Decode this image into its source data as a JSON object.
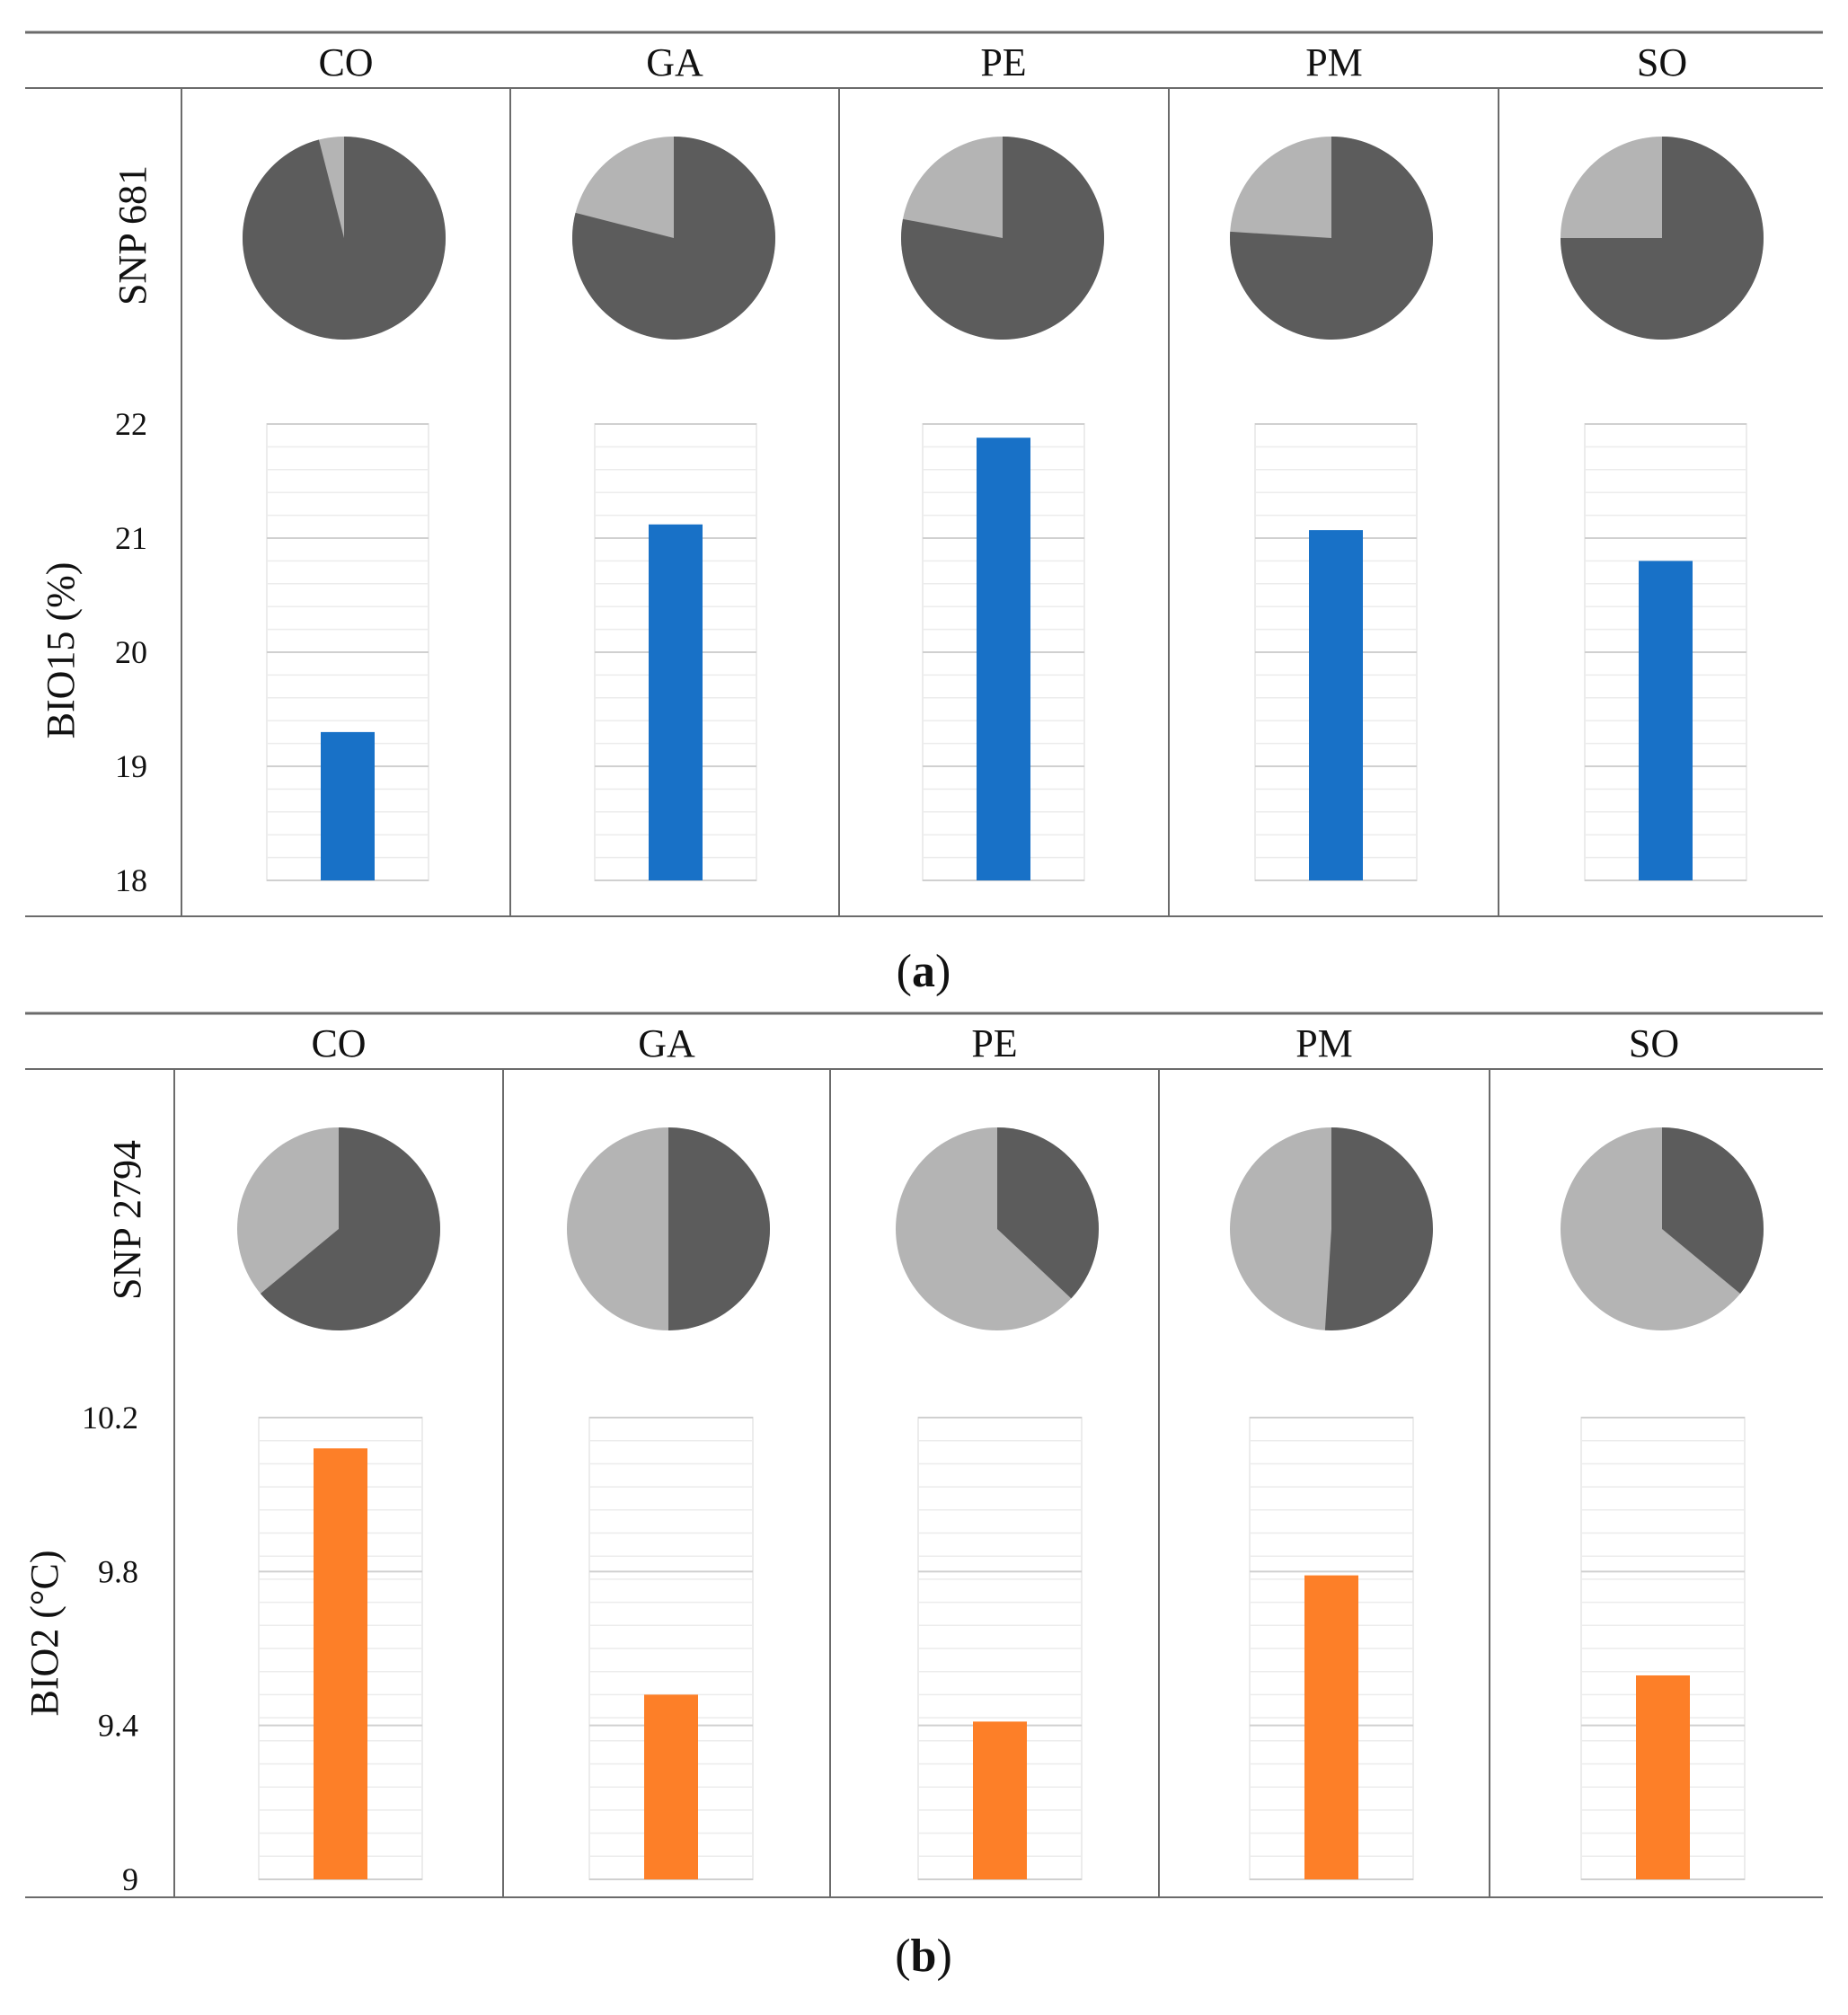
{
  "colors": {
    "pie_dark": "#5c5c5c",
    "pie_light": "#b4b4b4",
    "bar_a": "#1871c7",
    "bar_b": "#fd7f28",
    "grid_major": "#d0d0d0",
    "grid_minor": "#ececec",
    "rule": "#6b6b6b"
  },
  "chart_data": [
    {
      "panel": "a",
      "caption": {
        "open": "(",
        "letter": "a",
        "close": ")"
      },
      "populations": [
        "CO",
        "GA",
        "PE",
        "PM",
        "SO"
      ],
      "pie": {
        "type": "pie",
        "row_label": "SNP 681",
        "series": [
          {
            "name": "dark allele",
            "values": [
              0.96,
              0.79,
              0.78,
              0.76,
              0.75
            ]
          },
          {
            "name": "light allele",
            "values": [
              0.04,
              0.21,
              0.22,
              0.24,
              0.25
            ]
          }
        ]
      },
      "bar": {
        "type": "bar",
        "ylabel": "BIO15 (%)",
        "ylim": [
          18,
          22
        ],
        "yticks": [
          18,
          19,
          20,
          21,
          22
        ],
        "values": [
          19.3,
          21.12,
          21.88,
          21.07,
          20.8
        ]
      }
    },
    {
      "panel": "b",
      "caption": {
        "open": "(",
        "letter": "b",
        "close": ")"
      },
      "populations": [
        "CO",
        "GA",
        "PE",
        "PM",
        "SO"
      ],
      "pie": {
        "type": "pie",
        "row_label": "SNP 2794",
        "series": [
          {
            "name": "dark allele",
            "values": [
              0.64,
              0.5,
              0.37,
              0.51,
              0.36
            ]
          },
          {
            "name": "light allele",
            "values": [
              0.36,
              0.5,
              0.63,
              0.49,
              0.64
            ]
          }
        ]
      },
      "bar": {
        "type": "bar",
        "ylabel": "BIO2 (°C)",
        "ylim": [
          9,
          10.2
        ],
        "yticks": [
          "9",
          "9.4",
          "9.8",
          "10.2"
        ],
        "values": [
          10.12,
          9.48,
          9.41,
          9.79,
          9.53
        ]
      }
    }
  ]
}
